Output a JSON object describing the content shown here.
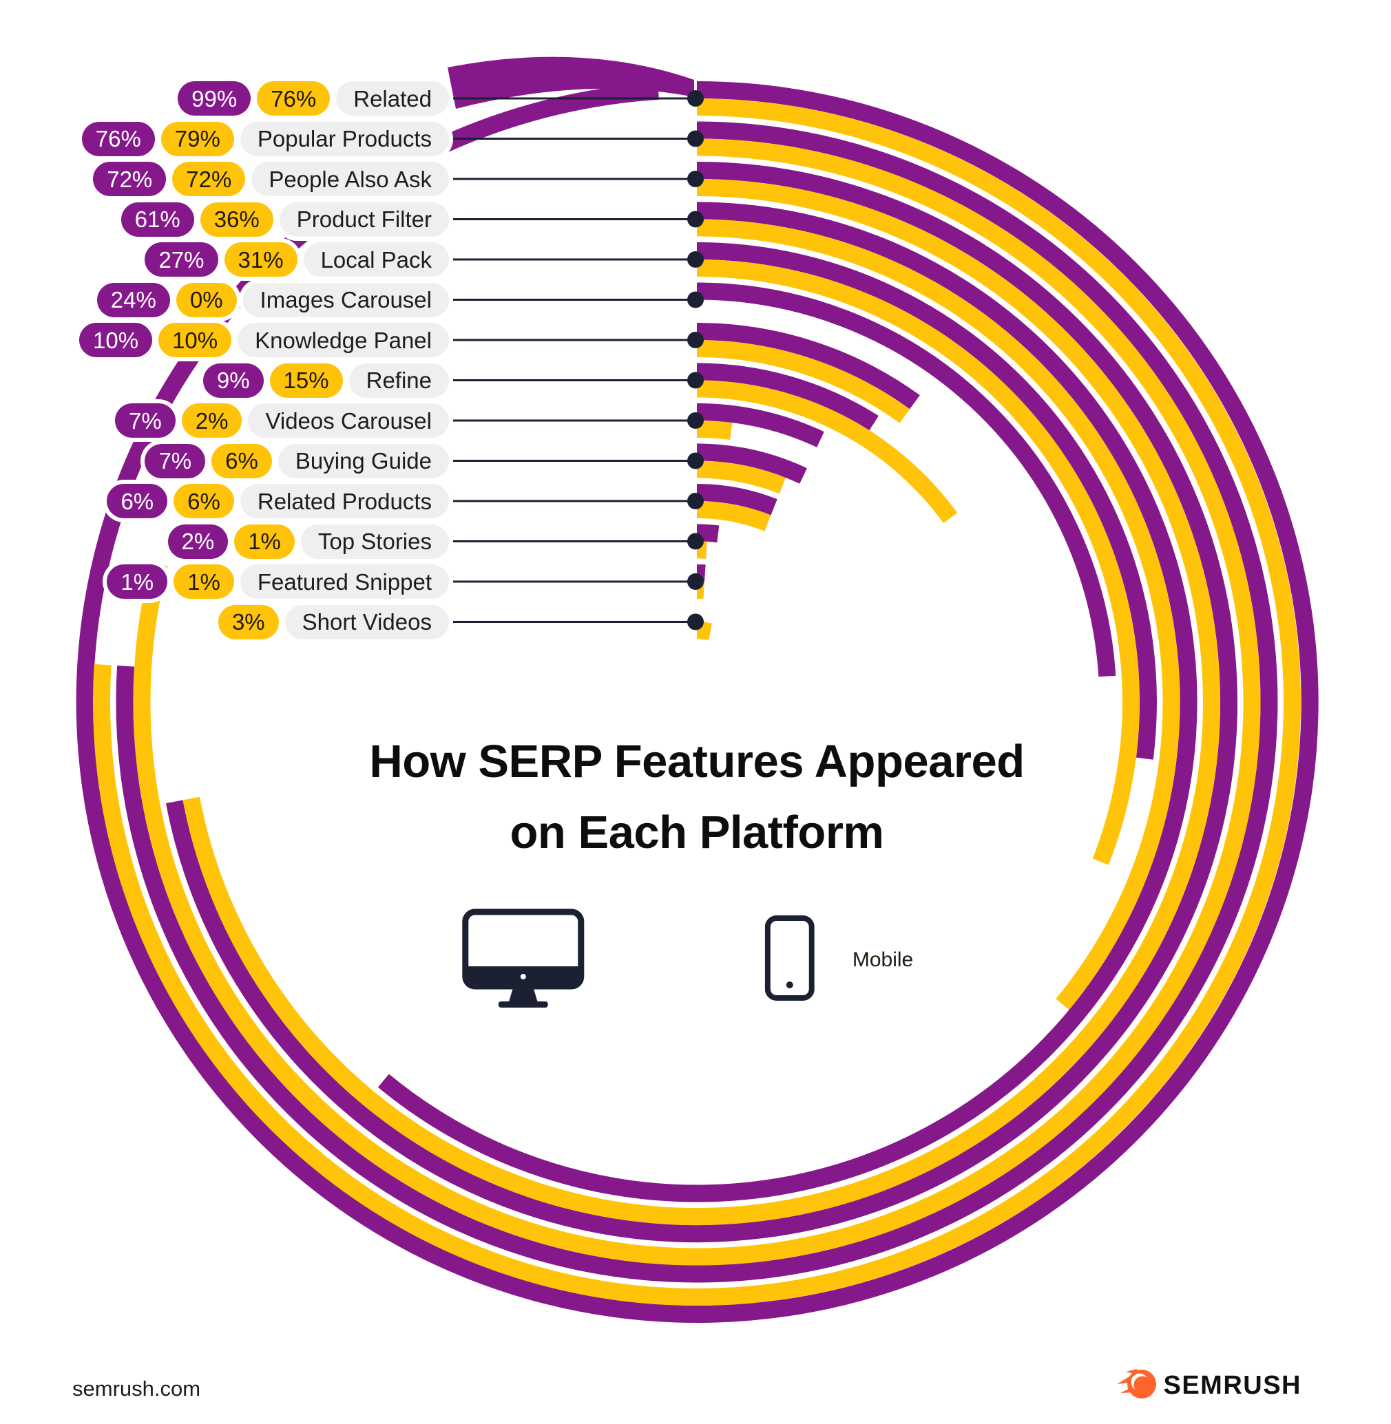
{
  "title": {
    "line1": "How SERP Features Appeared",
    "line2": "on Each Platform"
  },
  "legend": {
    "desktop_label": "Desktop",
    "mobile_label": "Mobile"
  },
  "footer": {
    "site": "semrush.com",
    "brand": "SEMRUSH"
  },
  "colors": {
    "desktop": "#85188A",
    "mobile": "#FFC40A",
    "ink": "#1B2132",
    "label_bg": "#EFEFEF",
    "logo_orange": "#FF642D"
  },
  "chart_data": {
    "type": "radial-bar",
    "title": "How SERP Features Appeared on Each Platform",
    "unit": "%",
    "start_angle_deg": 0,
    "direction": "clockwise",
    "full_circle_value": 100,
    "legend_position": "center",
    "categories": [
      "Related",
      "Popular Products",
      "People Also Ask",
      "Product Filter",
      "Local Pack",
      "Images Carousel",
      "Knowledge Panel",
      "Refine",
      "Videos Carousel",
      "Buying Guide",
      "Related Products",
      "Top Stories",
      "Featured Snippet",
      "Short Videos"
    ],
    "series": [
      {
        "name": "Desktop",
        "color": "#85188A",
        "values": [
          99,
          76,
          72,
          61,
          27,
          24,
          10,
          9,
          7,
          7,
          6,
          2,
          1,
          null
        ]
      },
      {
        "name": "Mobile",
        "color": "#FFC40A",
        "values": [
          76,
          79,
          72,
          36,
          31,
          0,
          10,
          15,
          2,
          6,
          6,
          1,
          1,
          3
        ]
      }
    ]
  }
}
